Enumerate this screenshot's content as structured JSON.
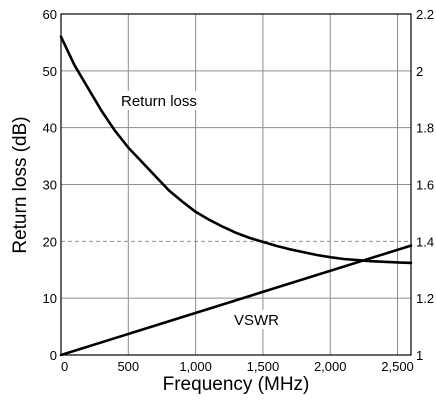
{
  "chart_data": {
    "type": "line",
    "xlabel": "Frequency (MHz)",
    "ylabel": "Return loss (dB)",
    "xlim": [
      0,
      2600
    ],
    "ylim": [
      0,
      60
    ],
    "y2lim": [
      1,
      2.2
    ],
    "xticks": [
      "0",
      "500",
      "1,000",
      "1,500",
      "2,000",
      "2,500"
    ],
    "yticks": [
      "0",
      "10",
      "20",
      "30",
      "40",
      "50",
      "60"
    ],
    "y2ticks": [
      "1",
      "1.2",
      "1.4",
      "1.6",
      "1.8",
      "2",
      "2.2"
    ],
    "grid": true,
    "annotations": [
      "Return loss",
      "VSWR"
    ],
    "series": [
      {
        "name": "Return loss",
        "axis": "left",
        "x": [
          0,
          50,
          100,
          200,
          300,
          400,
          500,
          600,
          700,
          800,
          900,
          1000,
          1100,
          1200,
          1300,
          1400,
          1500,
          1600,
          1700,
          1800,
          1900,
          2000,
          2100,
          2200,
          2300,
          2400,
          2500,
          2600
        ],
        "y": [
          56,
          53.5,
          51,
          47,
          43,
          39.5,
          36.5,
          34,
          31.5,
          29,
          27,
          25.2,
          23.8,
          22.6,
          21.5,
          20.6,
          19.9,
          19.2,
          18.6,
          18.1,
          17.6,
          17.2,
          16.9,
          16.7,
          16.5,
          16.4,
          16.3,
          16.2
        ]
      },
      {
        "name": "VSWR",
        "axis": "right",
        "x": [
          0,
          2600
        ],
        "y": [
          1.0,
          1.385
        ]
      }
    ]
  }
}
